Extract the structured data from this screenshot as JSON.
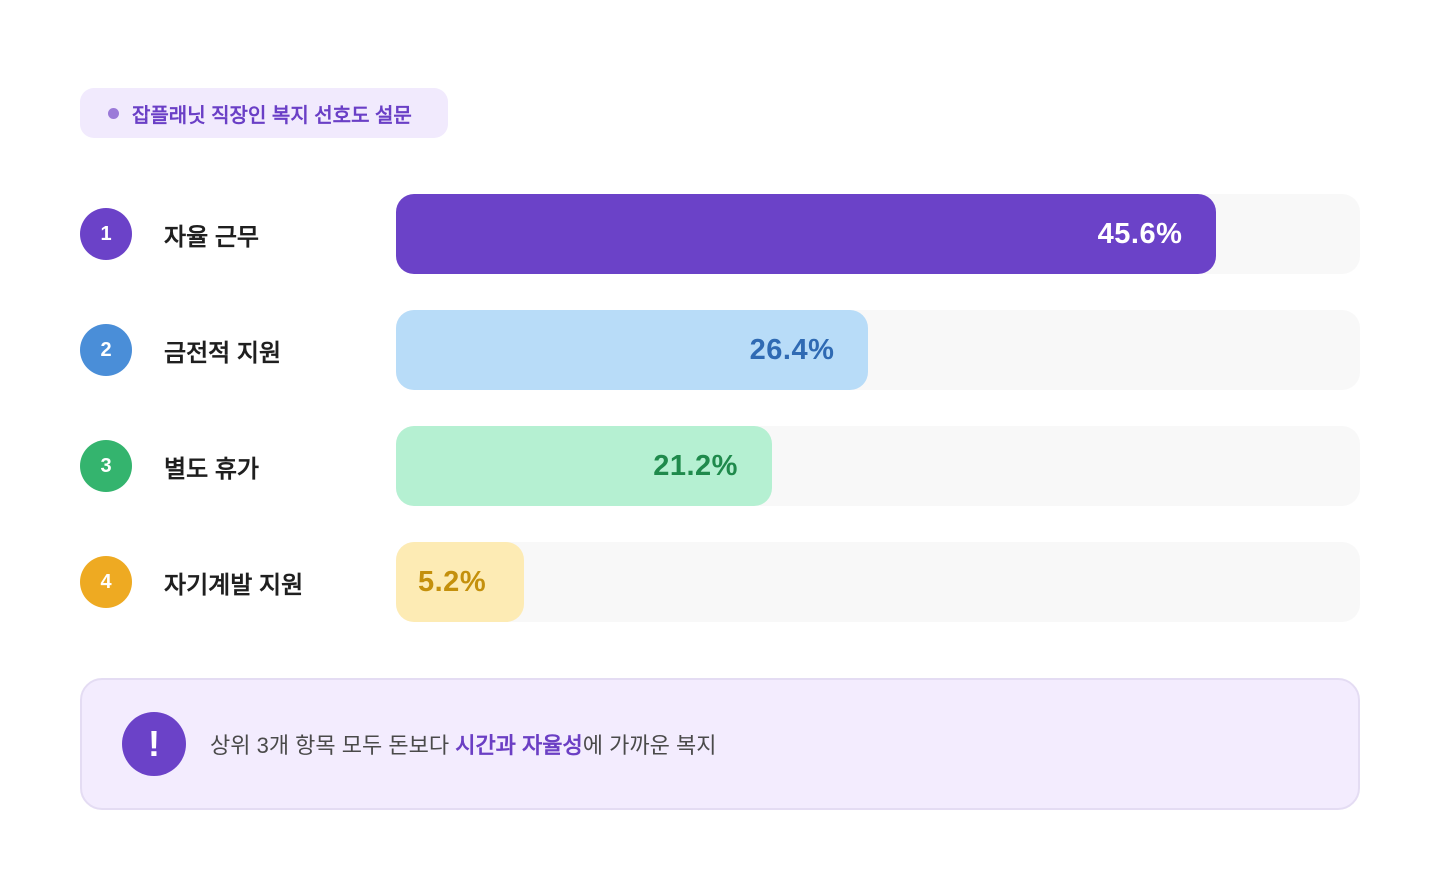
{
  "badge": {
    "title": "잡플래닛 직장인 복지 선호도 설문",
    "dot_color": "#9b7ad8"
  },
  "chart_data": {
    "type": "bar",
    "orientation": "horizontal",
    "title": "잡플래닛 직장인 복지 선호도 설문",
    "categories": [
      "자율 근무",
      "금전적 지원",
      "별도 휴가",
      "자기계발 지원"
    ],
    "values": [
      45.6,
      26.4,
      21.2,
      5.2
    ],
    "unit": "%",
    "xlim": [
      0,
      53.6
    ],
    "grid": false,
    "legend": "none"
  },
  "rows": [
    {
      "rank": "1",
      "label": "자율 근무",
      "value_label": "45.6%",
      "width_pct": 85.1,
      "rank_color": "#6b42c8",
      "bar_color": "#6b42c8",
      "text_color": "#ffffff",
      "small": false
    },
    {
      "rank": "2",
      "label": "금전적 지원",
      "value_label": "26.4%",
      "width_pct": 49.0,
      "rank_color": "#4a8ed8",
      "bar_color": "#b8dcf8",
      "text_color": "#2f6ab3",
      "small": false
    },
    {
      "rank": "3",
      "label": "별도 휴가",
      "value_label": "21.2%",
      "width_pct": 39.0,
      "rank_color": "#34b46e",
      "bar_color": "#b5f0d2",
      "text_color": "#1f8a4c",
      "small": false
    },
    {
      "rank": "4",
      "label": "자기계발 지원",
      "value_label": "5.2%",
      "width_pct": 13.3,
      "rank_color": "#eeaa22",
      "bar_color": "#fdebb4",
      "text_color": "#c4900c",
      "small": true
    }
  ],
  "callout": {
    "icon": "!",
    "text_before": "상위 3개 항목 모두 돈보다 ",
    "highlight": "시간과 자율성",
    "text_after": "에 가까운 복지"
  }
}
